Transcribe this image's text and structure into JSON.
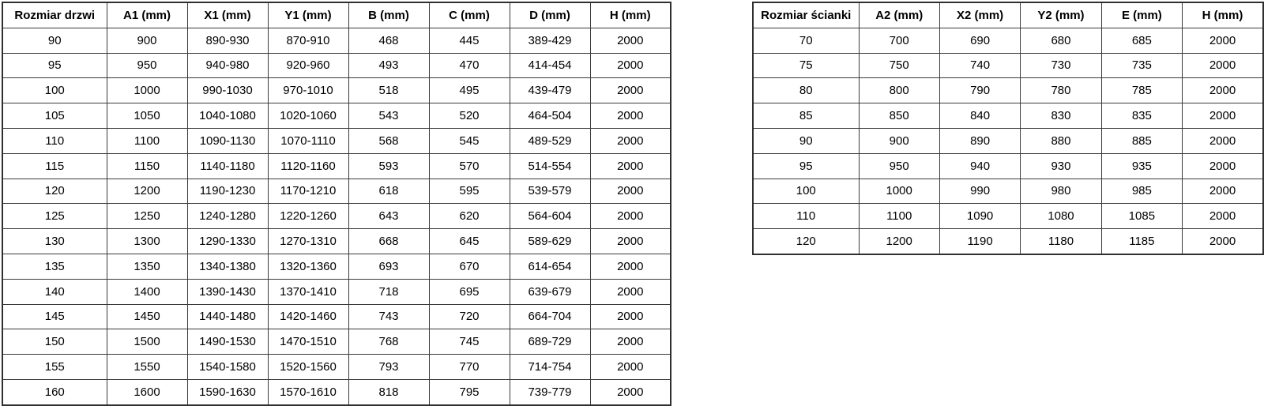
{
  "door_table": {
    "headers": [
      "Rozmiar drzwi",
      "A1 (mm)",
      "X1 (mm)",
      "Y1 (mm)",
      "B (mm)",
      "C (mm)",
      "D (mm)",
      "H (mm)"
    ],
    "rows": [
      [
        "90",
        "900",
        "890-930",
        "870-910",
        "468",
        "445",
        "389-429",
        "2000"
      ],
      [
        "95",
        "950",
        "940-980",
        "920-960",
        "493",
        "470",
        "414-454",
        "2000"
      ],
      [
        "100",
        "1000",
        "990-1030",
        "970-1010",
        "518",
        "495",
        "439-479",
        "2000"
      ],
      [
        "105",
        "1050",
        "1040-1080",
        "1020-1060",
        "543",
        "520",
        "464-504",
        "2000"
      ],
      [
        "110",
        "1100",
        "1090-1130",
        "1070-1110",
        "568",
        "545",
        "489-529",
        "2000"
      ],
      [
        "115",
        "1150",
        "1140-1180",
        "1120-1160",
        "593",
        "570",
        "514-554",
        "2000"
      ],
      [
        "120",
        "1200",
        "1190-1230",
        "1170-1210",
        "618",
        "595",
        "539-579",
        "2000"
      ],
      [
        "125",
        "1250",
        "1240-1280",
        "1220-1260",
        "643",
        "620",
        "564-604",
        "2000"
      ],
      [
        "130",
        "1300",
        "1290-1330",
        "1270-1310",
        "668",
        "645",
        "589-629",
        "2000"
      ],
      [
        "135",
        "1350",
        "1340-1380",
        "1320-1360",
        "693",
        "670",
        "614-654",
        "2000"
      ],
      [
        "140",
        "1400",
        "1390-1430",
        "1370-1410",
        "718",
        "695",
        "639-679",
        "2000"
      ],
      [
        "145",
        "1450",
        "1440-1480",
        "1420-1460",
        "743",
        "720",
        "664-704",
        "2000"
      ],
      [
        "150",
        "1500",
        "1490-1530",
        "1470-1510",
        "768",
        "745",
        "689-729",
        "2000"
      ],
      [
        "155",
        "1550",
        "1540-1580",
        "1520-1560",
        "793",
        "770",
        "714-754",
        "2000"
      ],
      [
        "160",
        "1600",
        "1590-1630",
        "1570-1610",
        "818",
        "795",
        "739-779",
        "2000"
      ]
    ]
  },
  "wall_table": {
    "headers": [
      "Rozmiar ścianki",
      "A2 (mm)",
      "X2 (mm)",
      "Y2 (mm)",
      "E (mm)",
      "H (mm)"
    ],
    "rows": [
      [
        "70",
        "700",
        "690",
        "680",
        "685",
        "2000"
      ],
      [
        "75",
        "750",
        "740",
        "730",
        "735",
        "2000"
      ],
      [
        "80",
        "800",
        "790",
        "780",
        "785",
        "2000"
      ],
      [
        "85",
        "850",
        "840",
        "830",
        "835",
        "2000"
      ],
      [
        "90",
        "900",
        "890",
        "880",
        "885",
        "2000"
      ],
      [
        "95",
        "950",
        "940",
        "930",
        "935",
        "2000"
      ],
      [
        "100",
        "1000",
        "990",
        "980",
        "985",
        "2000"
      ],
      [
        "110",
        "1100",
        "1090",
        "1080",
        "1085",
        "2000"
      ],
      [
        "120",
        "1200",
        "1190",
        "1180",
        "1185",
        "2000"
      ]
    ]
  },
  "colors": {
    "border": "#3a3a3a",
    "text": "#000000",
    "background": "#ffffff"
  }
}
